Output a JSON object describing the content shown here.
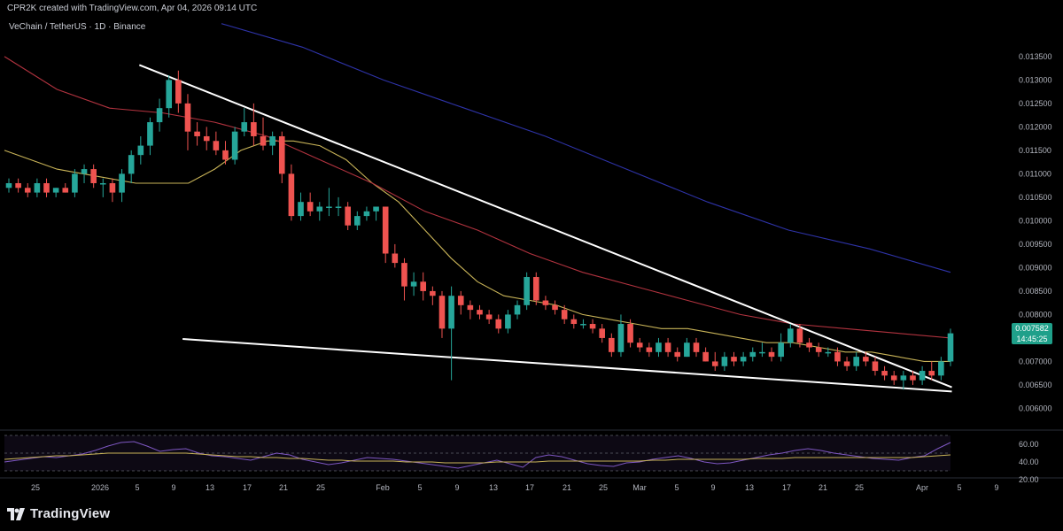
{
  "header": {
    "creator": "CPR2K created with TradingView.com, Apr 04, 2026 09:14 UTC",
    "symbol": "VeChain / TetherUS · 1D · Binance",
    "currency": "USDT"
  },
  "footer": {
    "brand": "TradingView"
  },
  "colors": {
    "bull": "#26a69a",
    "bear": "#ef5350",
    "ema_short": "#c9b458",
    "ema_mid": "#b2333f",
    "ema_long": "#2e33a8",
    "trendline": "#ffffff",
    "rsi": "#7e57c2",
    "rsi_ma": "#c9b458",
    "label_bg": "#1fa08a"
  },
  "price_label": {
    "value": "0.007582",
    "countdown": "14:45:25"
  },
  "chart_data": {
    "type": "candlestick",
    "price_axis": {
      "range": [
        0.00565,
        0.01395
      ],
      "ticks": [
        "0.013500",
        "0.013000",
        "0.012500",
        "0.012000",
        "0.011500",
        "0.011000",
        "0.010500",
        "0.010000",
        "0.009500",
        "0.009000",
        "0.008500",
        "0.008000",
        "0.007500",
        "0.007000",
        "0.006500",
        "0.006000"
      ]
    },
    "time_axis": {
      "ticks": [
        "25",
        "2026",
        "5",
        "9",
        "13",
        "17",
        "21",
        "25",
        "Feb",
        "5",
        "9",
        "13",
        "17",
        "21",
        "25",
        "Mar",
        "5",
        "9",
        "13",
        "17",
        "21",
        "25",
        "Apr",
        "5",
        "9"
      ]
    },
    "candles": [
      [
        0.0107,
        0.0109,
        0.0106,
        0.0108
      ],
      [
        0.0108,
        0.0109,
        0.0106,
        0.0107
      ],
      [
        0.0107,
        0.0108,
        0.0105,
        0.0106
      ],
      [
        0.0106,
        0.0109,
        0.0105,
        0.0108
      ],
      [
        0.0108,
        0.0109,
        0.0105,
        0.0106
      ],
      [
        0.0106,
        0.0107,
        0.0105,
        0.0107
      ],
      [
        0.0107,
        0.0108,
        0.0106,
        0.0106
      ],
      [
        0.0106,
        0.0111,
        0.0105,
        0.011
      ],
      [
        0.011,
        0.0112,
        0.0108,
        0.0111
      ],
      [
        0.0111,
        0.0112,
        0.0107,
        0.0108
      ],
      [
        0.0108,
        0.0109,
        0.0105,
        0.0108
      ],
      [
        0.0108,
        0.0109,
        0.0104,
        0.0106
      ],
      [
        0.0106,
        0.0111,
        0.0104,
        0.011
      ],
      [
        0.011,
        0.0115,
        0.0108,
        0.0114
      ],
      [
        0.0114,
        0.0118,
        0.0112,
        0.0116
      ],
      [
        0.0116,
        0.0122,
        0.0114,
        0.0121
      ],
      [
        0.0121,
        0.0126,
        0.0119,
        0.0124
      ],
      [
        0.0124,
        0.0131,
        0.0122,
        0.013
      ],
      [
        0.013,
        0.0132,
        0.0123,
        0.0125
      ],
      [
        0.0125,
        0.0127,
        0.0115,
        0.0119
      ],
      [
        0.0119,
        0.0121,
        0.0116,
        0.0118
      ],
      [
        0.0118,
        0.012,
        0.0115,
        0.0117
      ],
      [
        0.0117,
        0.0119,
        0.0114,
        0.0115
      ],
      [
        0.0115,
        0.0117,
        0.0112,
        0.0113
      ],
      [
        0.0113,
        0.012,
        0.0112,
        0.0119
      ],
      [
        0.0119,
        0.0124,
        0.0118,
        0.0121
      ],
      [
        0.0121,
        0.0125,
        0.0116,
        0.0118
      ],
      [
        0.0118,
        0.0122,
        0.0115,
        0.0116
      ],
      [
        0.0116,
        0.0119,
        0.0114,
        0.0118
      ],
      [
        0.0118,
        0.0119,
        0.0108,
        0.011
      ],
      [
        0.011,
        0.0112,
        0.01,
        0.0101
      ],
      [
        0.0101,
        0.0106,
        0.01,
        0.0104
      ],
      [
        0.0104,
        0.0106,
        0.0101,
        0.0102
      ],
      [
        0.0102,
        0.0104,
        0.01,
        0.0103
      ],
      [
        0.0103,
        0.0107,
        0.0101,
        0.0103
      ],
      [
        0.0103,
        0.0105,
        0.0101,
        0.0103
      ],
      [
        0.0103,
        0.0104,
        0.0098,
        0.0099
      ],
      [
        0.0099,
        0.0102,
        0.0098,
        0.0101
      ],
      [
        0.0101,
        0.0103,
        0.01,
        0.0102
      ],
      [
        0.0102,
        0.0103,
        0.01,
        0.0103
      ],
      [
        0.0103,
        0.0103,
        0.0091,
        0.0093
      ],
      [
        0.0093,
        0.0095,
        0.009,
        0.0091
      ],
      [
        0.0091,
        0.0092,
        0.0083,
        0.0086
      ],
      [
        0.0086,
        0.0089,
        0.0084,
        0.0087
      ],
      [
        0.0087,
        0.0089,
        0.0083,
        0.0085
      ],
      [
        0.0085,
        0.0086,
        0.0082,
        0.0084
      ],
      [
        0.0084,
        0.0085,
        0.0075,
        0.0077
      ],
      [
        0.0077,
        0.0086,
        0.0066,
        0.0084
      ],
      [
        0.0084,
        0.0085,
        0.008,
        0.0082
      ],
      [
        0.0082,
        0.0083,
        0.0079,
        0.0081
      ],
      [
        0.0081,
        0.0082,
        0.0079,
        0.008
      ],
      [
        0.008,
        0.0081,
        0.0078,
        0.0079
      ],
      [
        0.0079,
        0.008,
        0.0076,
        0.0077
      ],
      [
        0.0077,
        0.0081,
        0.0076,
        0.008
      ],
      [
        0.008,
        0.0083,
        0.0079,
        0.0082
      ],
      [
        0.0082,
        0.0089,
        0.0081,
        0.0088
      ],
      [
        0.0088,
        0.0089,
        0.0082,
        0.0083
      ],
      [
        0.0083,
        0.0084,
        0.0081,
        0.0082
      ],
      [
        0.0082,
        0.0083,
        0.008,
        0.0081
      ],
      [
        0.0081,
        0.0082,
        0.0078,
        0.0079
      ],
      [
        0.0079,
        0.008,
        0.0077,
        0.0078
      ],
      [
        0.0078,
        0.0079,
        0.0077,
        0.0078
      ],
      [
        0.0078,
        0.0079,
        0.0076,
        0.0077
      ],
      [
        0.0077,
        0.0078,
        0.0074,
        0.0075
      ],
      [
        0.0075,
        0.0076,
        0.0071,
        0.0072
      ],
      [
        0.0072,
        0.008,
        0.0071,
        0.0078
      ],
      [
        0.0078,
        0.0079,
        0.0073,
        0.0074
      ],
      [
        0.0074,
        0.0075,
        0.0072,
        0.0073
      ],
      [
        0.0073,
        0.0074,
        0.0071,
        0.0072
      ],
      [
        0.0072,
        0.0075,
        0.0071,
        0.0074
      ],
      [
        0.0074,
        0.0075,
        0.0071,
        0.0072
      ],
      [
        0.0072,
        0.0073,
        0.007,
        0.0071
      ],
      [
        0.0071,
        0.0075,
        0.0071,
        0.0074
      ],
      [
        0.0074,
        0.0075,
        0.0071,
        0.0072
      ],
      [
        0.0072,
        0.0073,
        0.007,
        0.007
      ],
      [
        0.007,
        0.0072,
        0.0068,
        0.0069
      ],
      [
        0.0069,
        0.0072,
        0.0068,
        0.0071
      ],
      [
        0.0071,
        0.0072,
        0.0069,
        0.007
      ],
      [
        0.007,
        0.0072,
        0.0069,
        0.0071
      ],
      [
        0.0071,
        0.0073,
        0.007,
        0.0072
      ],
      [
        0.0072,
        0.0074,
        0.0071,
        0.0072
      ],
      [
        0.0072,
        0.0073,
        0.007,
        0.0071
      ],
      [
        0.0071,
        0.0076,
        0.007,
        0.0074
      ],
      [
        0.0074,
        0.0078,
        0.0073,
        0.0077
      ],
      [
        0.0077,
        0.0078,
        0.0073,
        0.0074
      ],
      [
        0.0074,
        0.0075,
        0.0072,
        0.0073
      ],
      [
        0.0073,
        0.0074,
        0.0071,
        0.0072
      ],
      [
        0.0072,
        0.0073,
        0.0071,
        0.0072
      ],
      [
        0.0072,
        0.0073,
        0.0069,
        0.007
      ],
      [
        0.007,
        0.0071,
        0.0068,
        0.0069
      ],
      [
        0.0069,
        0.0072,
        0.0068,
        0.0071
      ],
      [
        0.0071,
        0.0072,
        0.0069,
        0.007
      ],
      [
        0.007,
        0.0071,
        0.0067,
        0.0068
      ],
      [
        0.0068,
        0.0069,
        0.0066,
        0.0067
      ],
      [
        0.0067,
        0.0068,
        0.0065,
        0.0066
      ],
      [
        0.0066,
        0.0068,
        0.0064,
        0.0067
      ],
      [
        0.0067,
        0.0068,
        0.0065,
        0.0066
      ],
      [
        0.0066,
        0.0069,
        0.0065,
        0.0068
      ],
      [
        0.0068,
        0.007,
        0.0066,
        0.0067
      ],
      [
        0.0067,
        0.0071,
        0.0066,
        0.007
      ],
      [
        0.007,
        0.0077,
        0.0069,
        0.0076
      ]
    ],
    "ema_short": [
      0.0115,
      0.0113,
      0.0111,
      0.011,
      0.0109,
      0.0108,
      0.0108,
      0.0108,
      0.0111,
      0.0115,
      0.0117,
      0.0117,
      0.0116,
      0.0113,
      0.0108,
      0.0104,
      0.0098,
      0.0092,
      0.0087,
      0.0084,
      0.0083,
      0.0082,
      0.008,
      0.0079,
      0.0078,
      0.0077,
      0.0077,
      0.0076,
      0.0075,
      0.0074,
      0.0074,
      0.0073,
      0.0072,
      0.0072,
      0.0071,
      0.007,
      0.007
    ],
    "ema_mid": [
      0.0135,
      0.0128,
      0.0124,
      0.0123,
      0.0121,
      0.0118,
      0.0113,
      0.0108,
      0.0102,
      0.0098,
      0.0093,
      0.0089,
      0.0086,
      0.0083,
      0.008,
      0.0078,
      0.0077,
      0.0076,
      0.0075
    ],
    "ema_long": [
      0.0142,
      0.0137,
      0.013,
      0.0124,
      0.0118,
      0.0111,
      0.0104,
      0.0098,
      0.0094,
      0.0089
    ],
    "trendlines": [
      {
        "from": [
          0.145,
          0.01332
        ],
        "to": [
          0.9,
          0.00645
        ],
        "name": "descending resistance"
      },
      {
        "from": [
          0.19,
          0.00748
        ],
        "to": [
          0.9,
          0.00636
        ],
        "name": "support"
      }
    ],
    "rsi": {
      "range": [
        30,
        70
      ],
      "ticks": [
        "60.00",
        "40.00",
        "20.00"
      ],
      "rsi_values": [
        40,
        42,
        44,
        46,
        45,
        47,
        49,
        53,
        58,
        62,
        63,
        58,
        52,
        54,
        55,
        50,
        47,
        46,
        44,
        42,
        46,
        50,
        48,
        43,
        40,
        37,
        39,
        42,
        45,
        44,
        43,
        41,
        39,
        37,
        35,
        33,
        36,
        39,
        42,
        38,
        34,
        45,
        48,
        46,
        42,
        38,
        36,
        35,
        39,
        40,
        43,
        45,
        47,
        44,
        40,
        38,
        39,
        42,
        45,
        48,
        50,
        53,
        55,
        53,
        50,
        48,
        46,
        44,
        43,
        42,
        45,
        47,
        55,
        62
      ],
      "ma_values": [
        43,
        44,
        45,
        46,
        47,
        47,
        48,
        49,
        50,
        50,
        50,
        50,
        50,
        50,
        50,
        49,
        48,
        47,
        46,
        46,
        45,
        45,
        44,
        44,
        43,
        42,
        42,
        41,
        41,
        41,
        41,
        40,
        40,
        40,
        39,
        39,
        39,
        39,
        40,
        40,
        40,
        40,
        41,
        41,
        41,
        41,
        41,
        41,
        41,
        41,
        42,
        42,
        43,
        43,
        43,
        43,
        43,
        43,
        44,
        44,
        44,
        45,
        45,
        45,
        45,
        45,
        45,
        45,
        45,
        45,
        45,
        46,
        47,
        48
      ]
    }
  }
}
